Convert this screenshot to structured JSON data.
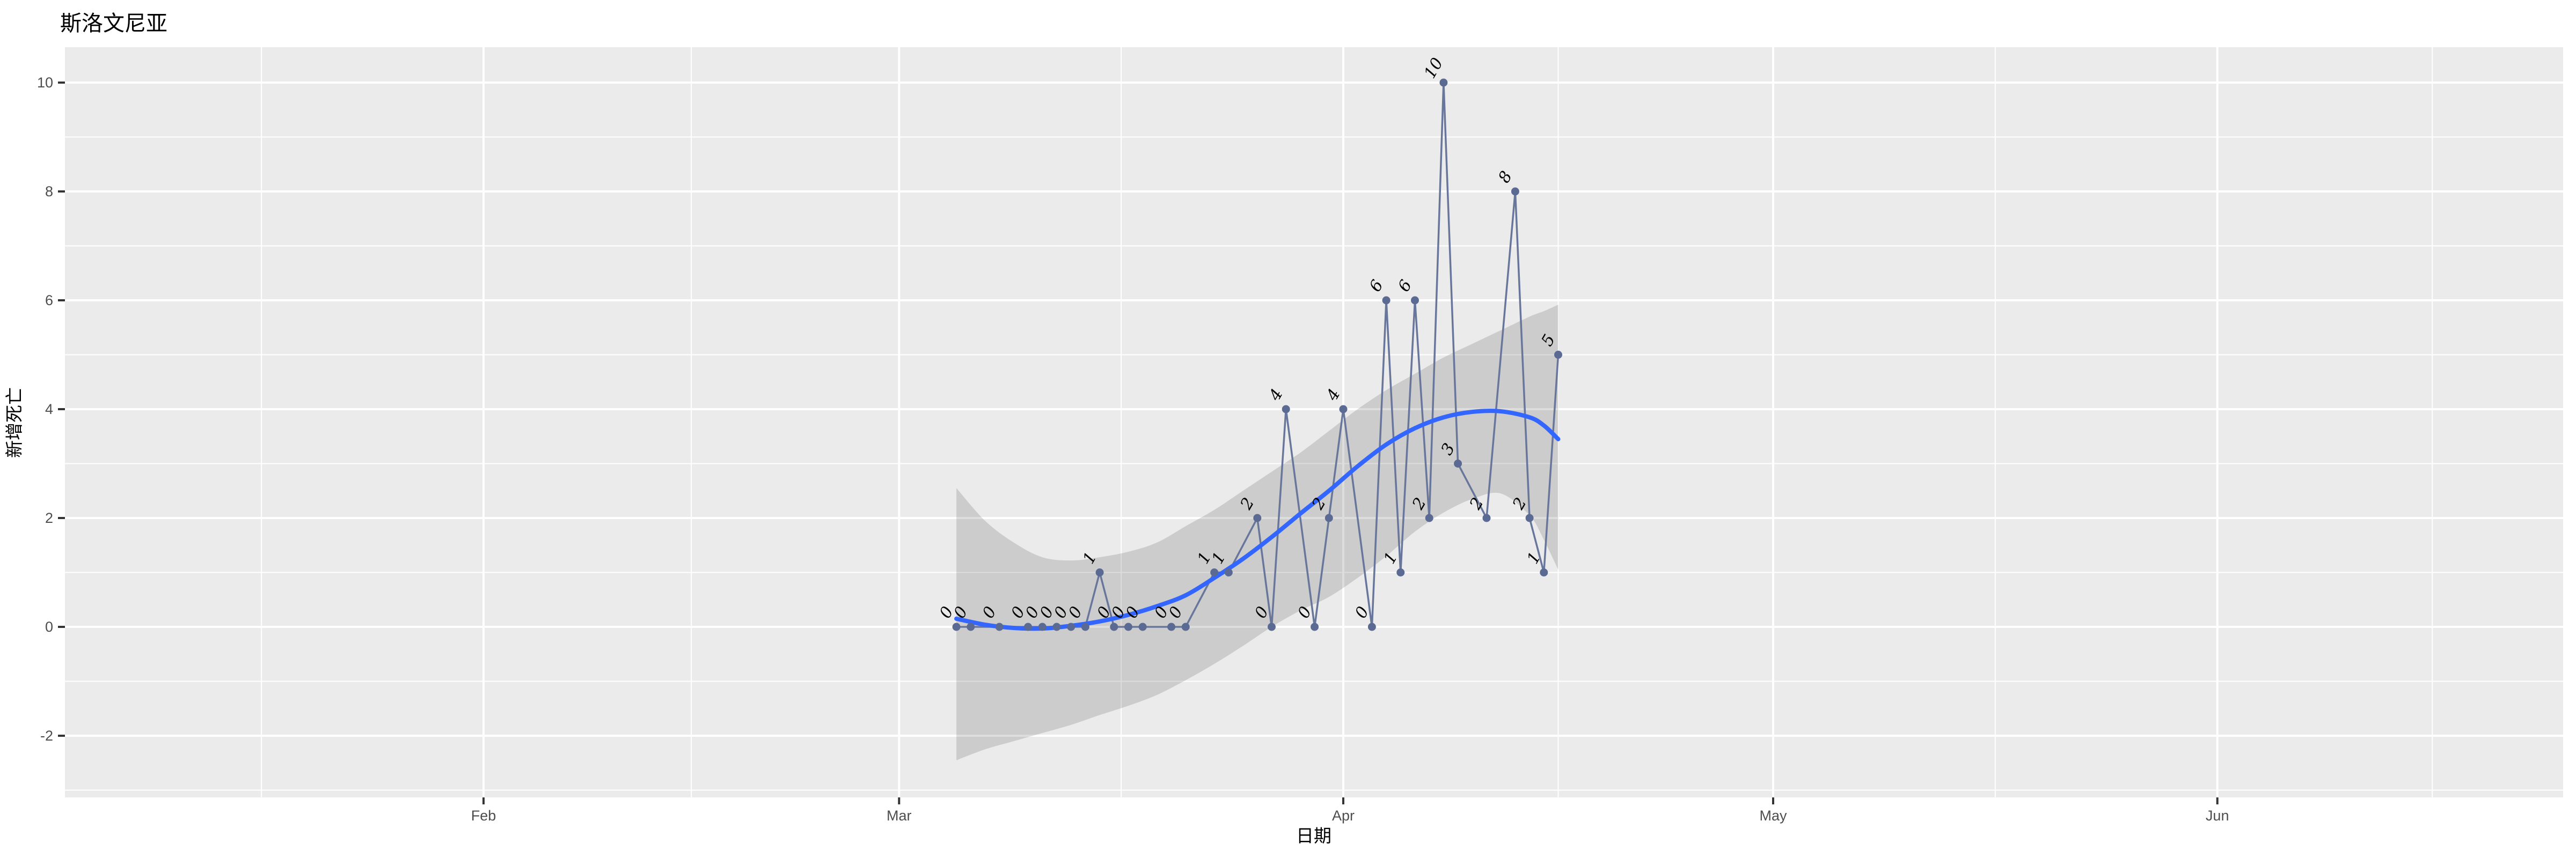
{
  "title": "斯洛文尼亚",
  "x_axis": {
    "label": "日期",
    "ticks": [
      "Feb",
      "Mar",
      "Apr",
      "May",
      "Jun"
    ]
  },
  "y_axis": {
    "label": "新增死亡",
    "ticks": [
      -2,
      0,
      2,
      4,
      6,
      8,
      10
    ]
  },
  "colors": {
    "plot_background": "#FFFFFF",
    "panel_background": "#EBEBEB",
    "gridline": "#FFFFFF",
    "axis_tick_text": "#4D4D4D",
    "axis_tick_mark": "#333333",
    "title_text": "#000000",
    "data_line": "#68769B",
    "data_point": "#5A6A92",
    "point_label": "#000000",
    "smooth_line": "#3366FF",
    "ci_band": "rgba(53,53,53,0.17)"
  },
  "chart_data": {
    "type": "line",
    "title": "斯洛文尼亚",
    "xlabel": "日期",
    "ylabel": "新增死亡",
    "x_tick_labels": [
      "Feb",
      "Mar",
      "Apr",
      "May",
      "Jun"
    ],
    "x_tick_dates": [
      "2020-02-01",
      "2020-03-01",
      "2020-04-01",
      "2020-05-01",
      "2020-06-01"
    ],
    "y_tick_values": [
      -2,
      0,
      2,
      4,
      6,
      8,
      10
    ],
    "ylim": [
      -3.13,
      10.65
    ],
    "grid": "on",
    "legend": "none",
    "series": [
      {
        "name": "新增死亡 (daily new deaths, labeled points)",
        "points": [
          {
            "date": "2020-03-05",
            "value": 0
          },
          {
            "date": "2020-03-06",
            "value": 0
          },
          {
            "date": "2020-03-08",
            "value": 0
          },
          {
            "date": "2020-03-10",
            "value": 0
          },
          {
            "date": "2020-03-11",
            "value": 0
          },
          {
            "date": "2020-03-12",
            "value": 0
          },
          {
            "date": "2020-03-13",
            "value": 0
          },
          {
            "date": "2020-03-14",
            "value": 0
          },
          {
            "date": "2020-03-15",
            "value": 1
          },
          {
            "date": "2020-03-16",
            "value": 0
          },
          {
            "date": "2020-03-17",
            "value": 0
          },
          {
            "date": "2020-03-18",
            "value": 0
          },
          {
            "date": "2020-03-20",
            "value": 0
          },
          {
            "date": "2020-03-21",
            "value": 0
          },
          {
            "date": "2020-03-23",
            "value": 1
          },
          {
            "date": "2020-03-24",
            "value": 1
          },
          {
            "date": "2020-03-26",
            "value": 2
          },
          {
            "date": "2020-03-27",
            "value": 0
          },
          {
            "date": "2020-03-28",
            "value": 4
          },
          {
            "date": "2020-03-30",
            "value": 0
          },
          {
            "date": "2020-03-31",
            "value": 2
          },
          {
            "date": "2020-04-01",
            "value": 4
          },
          {
            "date": "2020-04-03",
            "value": 0
          },
          {
            "date": "2020-04-04",
            "value": 6
          },
          {
            "date": "2020-04-05",
            "value": 1
          },
          {
            "date": "2020-04-06",
            "value": 6
          },
          {
            "date": "2020-04-07",
            "value": 2
          },
          {
            "date": "2020-04-08",
            "value": 10
          },
          {
            "date": "2020-04-09",
            "value": 3
          },
          {
            "date": "2020-04-11",
            "value": 2
          },
          {
            "date": "2020-04-13",
            "value": 8
          },
          {
            "date": "2020-04-14",
            "value": 2
          },
          {
            "date": "2020-04-15",
            "value": 1
          },
          {
            "date": "2020-04-16",
            "value": 5
          }
        ]
      }
    ],
    "smooth_line": {
      "name": "loess smooth",
      "points_t_value": [
        [
          33,
          0.15
        ],
        [
          35,
          0.04
        ],
        [
          37,
          -0.02
        ],
        [
          39,
          -0.03
        ],
        [
          41,
          0.02
        ],
        [
          43,
          0.1
        ],
        [
          45,
          0.22
        ],
        [
          47,
          0.38
        ],
        [
          49,
          0.58
        ],
        [
          51,
          0.9
        ],
        [
          53,
          1.25
        ],
        [
          55,
          1.65
        ],
        [
          57,
          2.08
        ],
        [
          59,
          2.5
        ],
        [
          61,
          2.95
        ],
        [
          63,
          3.35
        ],
        [
          65,
          3.65
        ],
        [
          67,
          3.85
        ],
        [
          69,
          3.95
        ],
        [
          71,
          3.96
        ],
        [
          73,
          3.85
        ],
        [
          74,
          3.7
        ],
        [
          75,
          3.45
        ]
      ],
      "t_unit": "days since 2020-02-01"
    },
    "confidence_band": {
      "points_t_lo_hi": [
        [
          33,
          -2.45,
          2.55
        ],
        [
          35,
          -2.25,
          1.95
        ],
        [
          37,
          -2.1,
          1.55
        ],
        [
          39,
          -1.95,
          1.28
        ],
        [
          41,
          -1.8,
          1.22
        ],
        [
          43,
          -1.62,
          1.28
        ],
        [
          45,
          -1.45,
          1.38
        ],
        [
          47,
          -1.25,
          1.55
        ],
        [
          49,
          -0.98,
          1.85
        ],
        [
          51,
          -0.68,
          2.15
        ],
        [
          53,
          -0.35,
          2.5
        ],
        [
          55,
          0.0,
          2.85
        ],
        [
          57,
          0.3,
          3.2
        ],
        [
          59,
          0.55,
          3.6
        ],
        [
          61,
          0.9,
          4.0
        ],
        [
          63,
          1.3,
          4.35
        ],
        [
          65,
          1.75,
          4.65
        ],
        [
          67,
          2.1,
          4.95
        ],
        [
          69,
          2.35,
          5.2
        ],
        [
          71,
          2.45,
          5.45
        ],
        [
          73,
          2.05,
          5.7
        ],
        [
          74,
          1.6,
          5.8
        ],
        [
          75,
          1.05,
          5.92
        ]
      ],
      "t_unit": "days since 2020-02-01"
    }
  }
}
